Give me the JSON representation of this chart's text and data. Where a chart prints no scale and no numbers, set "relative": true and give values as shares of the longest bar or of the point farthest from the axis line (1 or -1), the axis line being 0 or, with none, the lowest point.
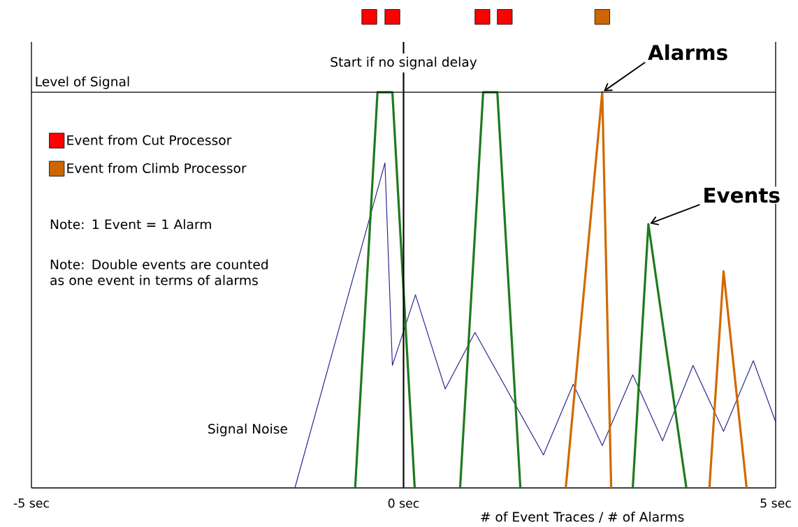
{
  "chart_data": {
    "type": "line",
    "relative": true,
    "xlabel": "# of Event Traces / # of Alarms",
    "xlim": [
      -5,
      5
    ],
    "xticks": [
      {
        "value": -5,
        "label": "-5 sec"
      },
      {
        "value": 0,
        "label": "0 sec"
      },
      {
        "value": 5,
        "label": "5 sec"
      }
    ],
    "series": [
      {
        "name": "Signal Noise",
        "color": "#2b2b8f",
        "x": [
          -1.46,
          -0.25,
          -0.15,
          0.16,
          0.56,
          0.96,
          1.88,
          2.28,
          2.67,
          3.08,
          3.48,
          3.89,
          4.3,
          4.7,
          5.0
        ],
        "values": [
          0,
          0.69,
          0.26,
          0.41,
          0.21,
          0.33,
          0.07,
          0.22,
          0.09,
          0.24,
          0.1,
          0.26,
          0.12,
          0.27,
          0.14
        ]
      },
      {
        "color": "#1e7b1e",
        "x": [
          -0.65,
          -0.35,
          -0.15,
          0.15
        ],
        "values": [
          0,
          0.84,
          0.84,
          0
        ]
      },
      {
        "color": "#1e7b1e",
        "x": [
          0.76,
          1.07,
          1.26,
          1.57
        ],
        "values": [
          0,
          0.84,
          0.84,
          0
        ]
      },
      {
        "color": "#1e7b1e",
        "x": [
          3.08,
          3.29,
          3.8
        ],
        "values": [
          0,
          0.56,
          0
        ]
      },
      {
        "color": "#d06a00",
        "x": [
          2.18,
          2.67,
          2.79
        ],
        "values": [
          0,
          0.84,
          0
        ]
      },
      {
        "color": "#d06a00",
        "x": [
          4.11,
          4.3,
          4.61
        ],
        "values": [
          0,
          0.46,
          0
        ]
      },
      {
        "type": "scatter",
        "marker": "square",
        "name": "Event from Cut Processor",
        "color": "#ff0000",
        "x": [
          -0.46,
          -0.15,
          1.06,
          1.36
        ],
        "values": [
          1,
          1,
          1,
          1
        ]
      },
      {
        "type": "scatter",
        "marker": "square",
        "name": "Event from Climb Processor",
        "color": "#cc6600",
        "x": [
          2.67
        ],
        "values": [
          1
        ]
      }
    ],
    "ref_lines": [
      {
        "axis": "x",
        "value": 0,
        "label": "Start if no signal delay"
      },
      {
        "axis": "y",
        "value": 0.84,
        "label": "Level of Signal"
      }
    ],
    "annotations": [
      {
        "text": "Alarms",
        "x": 2.67,
        "y": 0.84
      },
      {
        "text": "Events",
        "x": 3.29,
        "y": 0.56
      },
      "Note:  1 Event = 1 Alarm",
      "Note:  Double events are counted as one event in terms of alarms"
    ],
    "legend": "top left"
  }
}
